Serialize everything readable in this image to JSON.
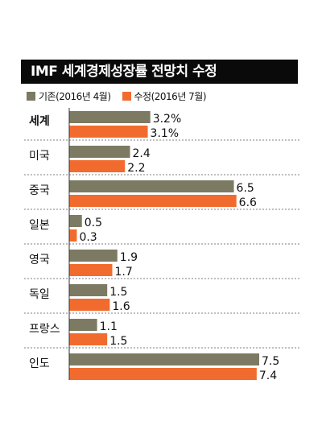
{
  "chart_data": {
    "type": "bar",
    "orientation": "horizontal",
    "title": "IMF 세계경제성장률 전망치 수정",
    "categories": [
      "세계",
      "미국",
      "중국",
      "일본",
      "영국",
      "독일",
      "프랑스",
      "인도"
    ],
    "series": [
      {
        "name": "기존(2016년 4월)",
        "color": "#7d7a63",
        "values": [
          3.2,
          2.4,
          6.5,
          0.5,
          1.9,
          1.5,
          1.1,
          7.5
        ],
        "labels": [
          "3.2%",
          "2.4",
          "6.5",
          "0.5",
          "1.9",
          "1.5",
          "1.1",
          "7.5"
        ]
      },
      {
        "name": "수정(2016년 7월)",
        "color": "#f26b2e",
        "values": [
          3.1,
          2.2,
          6.6,
          0.3,
          1.7,
          1.6,
          1.5,
          7.4
        ],
        "labels": [
          "3.1%",
          "2.2",
          "6.6",
          "0.3",
          "1.7",
          "1.6",
          "1.5",
          "7.4"
        ]
      }
    ],
    "xlim": [
      0,
      7.5
    ],
    "legend": "top-left",
    "grid": false
  }
}
